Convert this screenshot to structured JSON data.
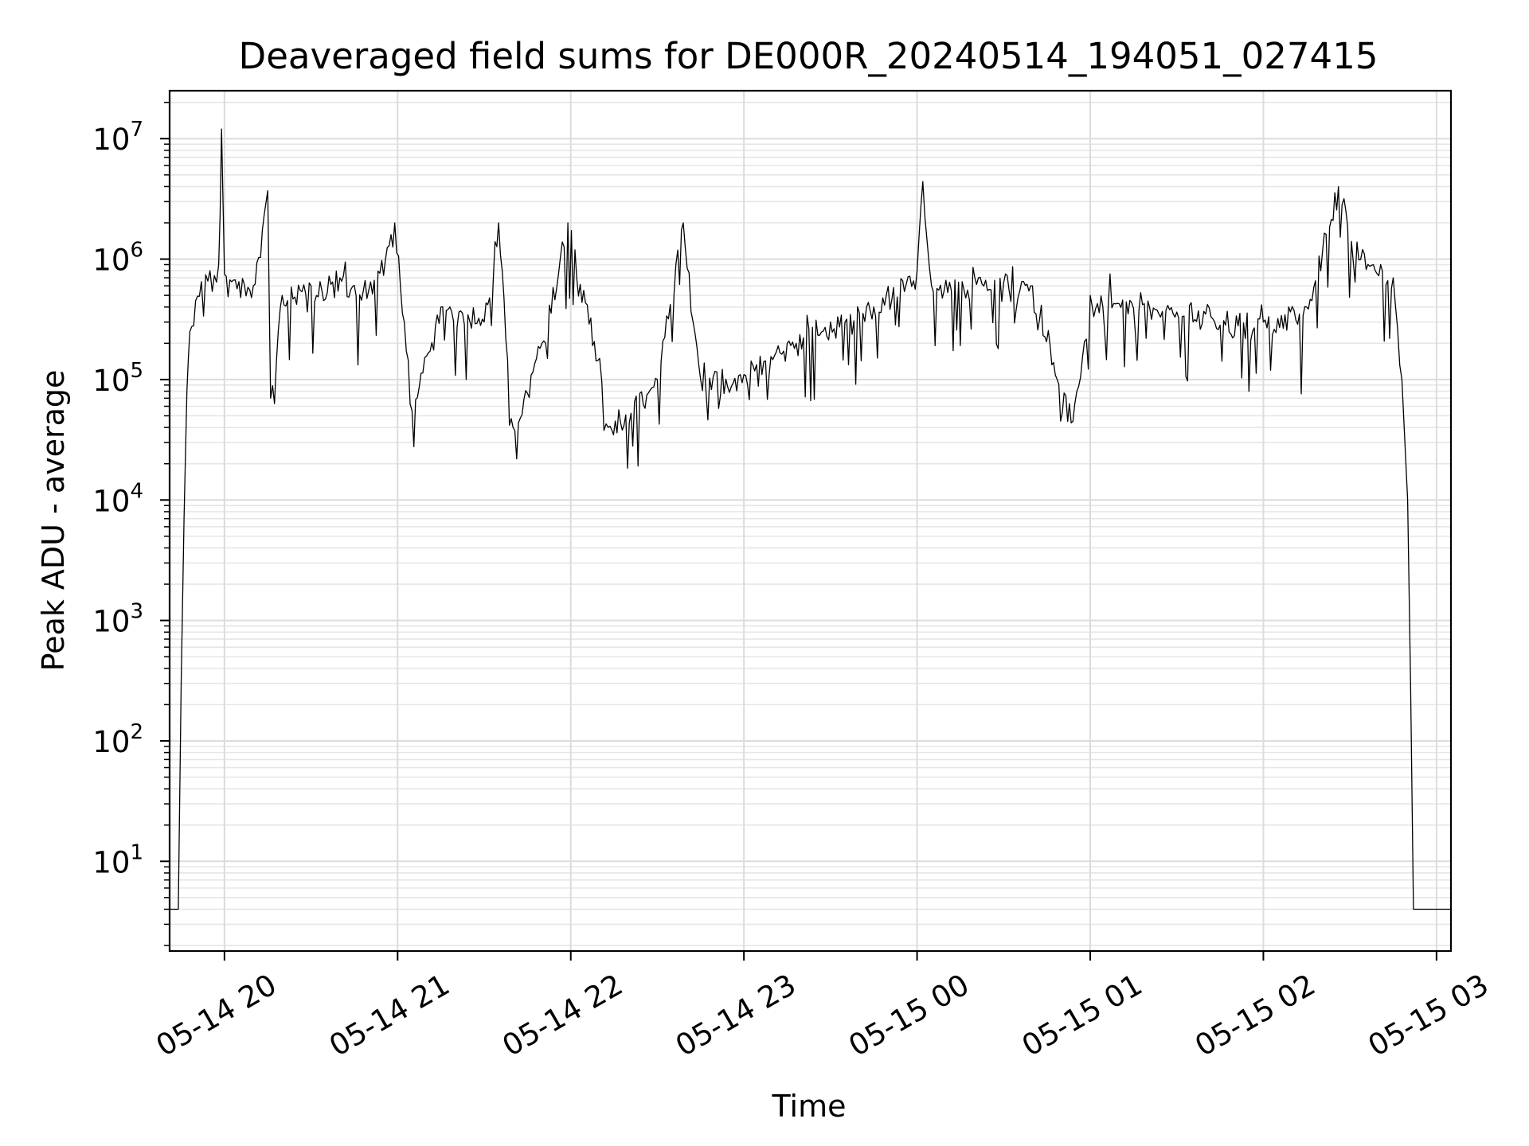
{
  "chart_data": {
    "type": "line",
    "title": "Deaveraged field sums for DE000R_20240514_194051_027415",
    "xlabel": "Time",
    "ylabel": "Peak ADU - average",
    "yscale": "log",
    "xlim": [
      "2024-05-14 19:41",
      "2024-05-15 03:05"
    ],
    "ylim": [
      1.8,
      25000000
    ],
    "grid": true,
    "x_ticks": [
      {
        "t": "2024-05-14 20:00",
        "label": "05-14 20"
      },
      {
        "t": "2024-05-14 21:00",
        "label": "05-14 21"
      },
      {
        "t": "2024-05-14 22:00",
        "label": "05-14 22"
      },
      {
        "t": "2024-05-14 23:00",
        "label": "05-14 23"
      },
      {
        "t": "2024-05-15 00:00",
        "label": "05-15 00"
      },
      {
        "t": "2024-05-15 01:00",
        "label": "05-15 01"
      },
      {
        "t": "2024-05-15 02:00",
        "label": "05-15 02"
      },
      {
        "t": "2024-05-15 03:00",
        "label": "05-15 03"
      }
    ],
    "y_ticks": [
      {
        "value": 10,
        "base": "10",
        "exp": "1"
      },
      {
        "value": 100,
        "base": "10",
        "exp": "2"
      },
      {
        "value": 1000,
        "base": "10",
        "exp": "3"
      },
      {
        "value": 10000,
        "base": "10",
        "exp": "4"
      },
      {
        "value": 100000,
        "base": "10",
        "exp": "5"
      },
      {
        "value": 1000000,
        "base": "10",
        "exp": "6"
      },
      {
        "value": 10000000,
        "base": "10",
        "exp": "7"
      }
    ],
    "series": [
      {
        "color": "#000000",
        "points": [
          [
            "2024-05-14 19:41",
            4
          ],
          [
            "2024-05-14 19:44",
            4
          ],
          [
            "2024-05-14 19:45",
            300
          ],
          [
            "2024-05-14 19:46",
            7000
          ],
          [
            "2024-05-14 19:47",
            80000
          ],
          [
            "2024-05-14 19:48",
            250000
          ],
          [
            "2024-05-14 19:50",
            450000
          ],
          [
            "2024-05-14 19:52",
            650000
          ],
          [
            "2024-05-14 19:55",
            800000
          ],
          [
            "2024-05-14 19:58",
            900000
          ],
          [
            "2024-05-14 19:59",
            12000000
          ],
          [
            "2024-05-14 20:00",
            750000
          ],
          [
            "2024-05-14 20:05",
            650000
          ],
          [
            "2024-05-14 20:10",
            600000
          ],
          [
            "2024-05-14 20:15",
            3700000
          ],
          [
            "2024-05-14 20:16",
            70000
          ],
          [
            "2024-05-14 20:20",
            500000
          ],
          [
            "2024-05-14 20:30",
            600000
          ],
          [
            "2024-05-14 20:40",
            700000
          ],
          [
            "2024-05-14 20:50",
            550000
          ],
          [
            "2024-05-14 20:59",
            2000000
          ],
          [
            "2024-05-14 21:05",
            55000
          ],
          [
            "2024-05-14 21:15",
            400000
          ],
          [
            "2024-05-14 21:30",
            300000
          ],
          [
            "2024-05-14 21:35",
            2000000
          ],
          [
            "2024-05-14 21:40",
            40000
          ],
          [
            "2024-05-14 21:50",
            200000
          ],
          [
            "2024-05-14 21:59",
            2000000
          ],
          [
            "2024-05-14 22:10",
            150000
          ],
          [
            "2024-05-14 22:13",
            40000
          ],
          [
            "2024-05-14 22:30",
            100000
          ],
          [
            "2024-05-14 22:39",
            2000000
          ],
          [
            "2024-05-14 22:45",
            100000
          ],
          [
            "2024-05-14 23:00",
            110000
          ],
          [
            "2024-05-14 23:15",
            200000
          ],
          [
            "2024-05-14 23:30",
            300000
          ],
          [
            "2024-05-14 23:45",
            400000
          ],
          [
            "2024-05-15 00:00",
            800000
          ],
          [
            "2024-05-15 00:02",
            4400000
          ],
          [
            "2024-05-15 00:05",
            600000
          ],
          [
            "2024-05-15 00:20",
            700000
          ],
          [
            "2024-05-15 00:40",
            600000
          ],
          [
            "2024-05-15 00:54",
            45000
          ],
          [
            "2024-05-15 01:00",
            500000
          ],
          [
            "2024-05-15 01:20",
            450000
          ],
          [
            "2024-05-15 01:40",
            350000
          ],
          [
            "2024-05-15 02:00",
            300000
          ],
          [
            "2024-05-15 02:15",
            400000
          ],
          [
            "2024-05-15 02:26",
            4000000
          ],
          [
            "2024-05-15 02:35",
            1100000
          ],
          [
            "2024-05-15 02:45",
            700000
          ],
          [
            "2024-05-15 02:48",
            100000
          ],
          [
            "2024-05-15 02:50",
            10000
          ],
          [
            "2024-05-15 02:51",
            300
          ],
          [
            "2024-05-15 02:52",
            4
          ],
          [
            "2024-05-15 03:05",
            4
          ]
        ]
      }
    ]
  }
}
